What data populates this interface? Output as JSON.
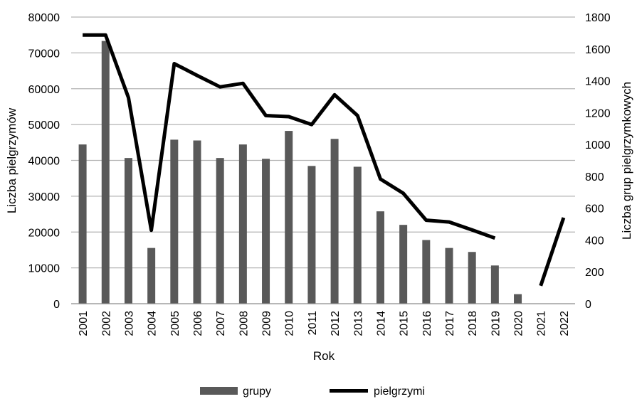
{
  "chart_data": {
    "type": "bar",
    "categories": [
      "2001",
      "2002",
      "2003",
      "2004",
      "2005",
      "2006",
      "2007",
      "2008",
      "2009",
      "2010",
      "2011",
      "2012",
      "2013",
      "2014",
      "2015",
      "2016",
      "2017",
      "2018",
      "2019",
      "2020",
      "2021",
      "2022"
    ],
    "series": [
      {
        "name": "grupy",
        "type": "bar",
        "axis": "right",
        "color": "#595959",
        "values": [
          1000,
          1650,
          915,
          350,
          1030,
          1025,
          915,
          1000,
          910,
          1085,
          865,
          1035,
          860,
          580,
          495,
          400,
          350,
          325,
          240,
          60,
          null,
          null
        ]
      },
      {
        "name": "pielgrzymi",
        "type": "line",
        "axis": "left",
        "color": "#000000",
        "values": [
          75000,
          75000,
          57500,
          20500,
          67000,
          63700,
          60500,
          61500,
          52500,
          52200,
          50000,
          58300,
          52500,
          34800,
          30800,
          23300,
          22800,
          20600,
          18300,
          null,
          5000,
          24000
        ]
      }
    ],
    "xlabel": "Rok",
    "ylabel": "Liczba pielgrzymów",
    "y2label": "Liczba grup pielgrzymkowych",
    "ylim": [
      0,
      80000
    ],
    "y2lim": [
      0,
      1800
    ],
    "yticks": [
      "0",
      "10000",
      "20000",
      "30000",
      "40000",
      "50000",
      "60000",
      "70000",
      "80000"
    ],
    "y2ticks": [
      "0",
      "200",
      "400",
      "600",
      "800",
      "1000",
      "1200",
      "1400",
      "1600",
      "1800"
    ],
    "grid": true,
    "legend_position": "bottom"
  }
}
